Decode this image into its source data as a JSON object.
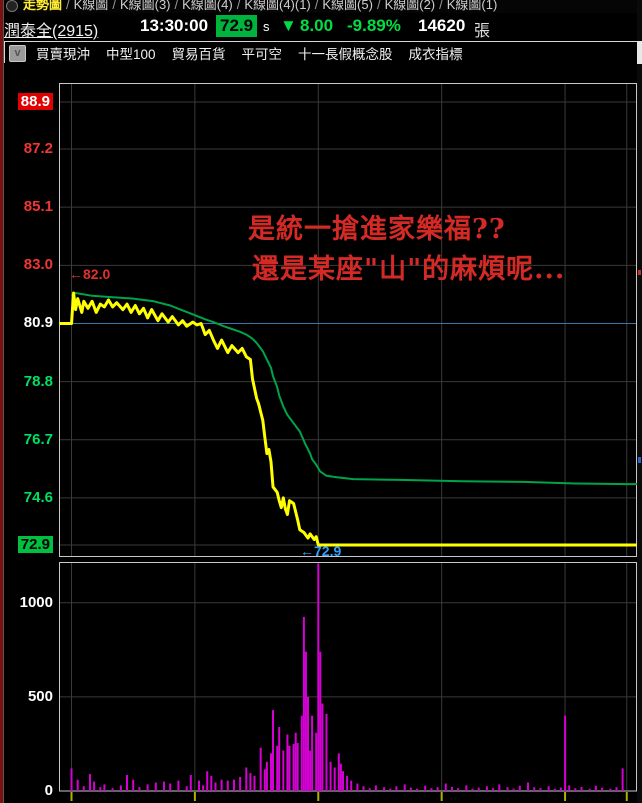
{
  "tabs": {
    "separator": "/",
    "items": [
      {
        "label": "走勢圖",
        "selected": true
      },
      {
        "label": "K線圖",
        "selected": false
      },
      {
        "label": "K線圖(3)",
        "selected": false
      },
      {
        "label": "K線圖(4)",
        "selected": false
      },
      {
        "label": "K線圖(4)(1)",
        "selected": false
      },
      {
        "label": "K線圖(5)",
        "selected": false
      },
      {
        "label": "K線圖(2)",
        "selected": false
      },
      {
        "label": "K線圖(1)",
        "selected": false
      }
    ]
  },
  "quote": {
    "name": "潤泰全(2915)",
    "time": "13:30:00",
    "price": "72.9",
    "price_flag": "s",
    "change_arrow": "▼",
    "change": "8.00",
    "change_pct": "-9.89%",
    "volume": "14620",
    "volume_unit": "張"
  },
  "groups": {
    "button_glyph": "v",
    "items": [
      "買賣現沖",
      "中型100",
      "貿易百貨",
      "平可空",
      "十一長假概念股",
      "成衣指標"
    ]
  },
  "annotation": {
    "line1": "是統一搶進家樂福??",
    "line2": "還是某座\"山\"的麻煩呢..."
  },
  "markers": {
    "open_high": "←82.0",
    "limit_low": "←72.9"
  },
  "colors": {
    "price_line": "#ffff00",
    "avg_line": "#00a448",
    "ref_line": "#3f74a8",
    "grid": "#3a3a3a",
    "panel_border": "#c8c8c8",
    "volume_bar": "#d400d4",
    "tick": "#b0b000",
    "up_text": "#f23535",
    "down_text": "#00e065",
    "limit_up_bg": "#e00000",
    "limit_down_bg": "#00c040",
    "header_down": "#00dd44"
  },
  "chart_data": [
    {
      "type": "line",
      "title": "intraday price 潤泰全(2915)",
      "x_unit": "minutes since 09:00",
      "xlim": [
        -6,
        275
      ],
      "x_gridlines_minutes": [
        0,
        60,
        120,
        180,
        240,
        270
      ],
      "ylim": [
        72.45,
        89.6
      ],
      "yticks": [
        {
          "v": 88.9,
          "style": "limit-up"
        },
        {
          "v": 87.2,
          "style": "up"
        },
        {
          "v": 85.1,
          "style": "up"
        },
        {
          "v": 83.0,
          "style": "up"
        },
        {
          "v": 80.9,
          "style": "ref"
        },
        {
          "v": 78.8,
          "style": "down"
        },
        {
          "v": 76.7,
          "style": "down"
        },
        {
          "v": 74.6,
          "style": "down"
        },
        {
          "v": 72.9,
          "style": "limit-down"
        }
      ],
      "ref_price": 80.9,
      "series": [
        {
          "name": "avg-price",
          "color": "#00a448",
          "width": 2,
          "points": [
            [
              0,
              81.9
            ],
            [
              2,
              82.0
            ],
            [
              10,
              81.9
            ],
            [
              20,
              81.85
            ],
            [
              30,
              81.8
            ],
            [
              40,
              81.7
            ],
            [
              48,
              81.55
            ],
            [
              53,
              81.4
            ],
            [
              60,
              81.2
            ],
            [
              65,
              81.05
            ],
            [
              69,
              80.95
            ],
            [
              74,
              80.8
            ],
            [
              78,
              80.7
            ],
            [
              82,
              80.6
            ],
            [
              85,
              80.5
            ],
            [
              88,
              80.35
            ],
            [
              90,
              80.2
            ],
            [
              93,
              79.9
            ],
            [
              95,
              79.6
            ],
            [
              97,
              79.3
            ],
            [
              98,
              79.0
            ],
            [
              100,
              78.6
            ],
            [
              101,
              78.3
            ],
            [
              103,
              77.9
            ],
            [
              105,
              77.6
            ],
            [
              108,
              77.3
            ],
            [
              111,
              77.0
            ],
            [
              114,
              76.5
            ],
            [
              116,
              76.2
            ],
            [
              117,
              76.0
            ],
            [
              119,
              75.8
            ],
            [
              121,
              75.55
            ],
            [
              124,
              75.4
            ],
            [
              129,
              75.35
            ],
            [
              137,
              75.28
            ],
            [
              160,
              75.25
            ],
            [
              190,
              75.2
            ],
            [
              220,
              75.18
            ],
            [
              245,
              75.12
            ],
            [
              270,
              75.1
            ],
            [
              275,
              75.1
            ]
          ]
        },
        {
          "name": "price",
          "color": "#ffff00",
          "width": 3,
          "points": [
            [
              -6,
              80.9
            ],
            [
              0,
              80.9
            ],
            [
              1,
              82.0
            ],
            [
              2,
              81.4
            ],
            [
              3,
              81.8
            ],
            [
              5,
              81.3
            ],
            [
              6,
              81.7
            ],
            [
              8,
              81.45
            ],
            [
              10,
              81.7
            ],
            [
              12,
              81.3
            ],
            [
              14,
              81.6
            ],
            [
              16,
              81.5
            ],
            [
              18,
              81.75
            ],
            [
              20,
              81.5
            ],
            [
              22,
              81.65
            ],
            [
              25,
              81.4
            ],
            [
              27,
              81.6
            ],
            [
              29,
              81.3
            ],
            [
              31,
              81.55
            ],
            [
              33,
              81.25
            ],
            [
              35,
              81.45
            ],
            [
              37,
              81.1
            ],
            [
              39,
              81.4
            ],
            [
              42,
              81.0
            ],
            [
              44,
              81.25
            ],
            [
              47,
              80.95
            ],
            [
              49,
              81.15
            ],
            [
              52,
              80.85
            ],
            [
              54,
              81.0
            ],
            [
              56,
              80.8
            ],
            [
              59,
              80.95
            ],
            [
              61,
              80.85
            ],
            [
              63,
              80.9
            ],
            [
              65,
              80.5
            ],
            [
              67,
              80.65
            ],
            [
              69,
              80.3
            ],
            [
              71,
              80.0
            ],
            [
              73,
              80.3
            ],
            [
              76,
              79.85
            ],
            [
              78,
              80.1
            ],
            [
              81,
              79.85
            ],
            [
              83,
              80.0
            ],
            [
              85,
              79.7
            ],
            [
              87,
              79.6
            ],
            [
              88,
              78.9
            ],
            [
              90,
              78.2
            ],
            [
              91,
              78.0
            ],
            [
              92,
              77.7
            ],
            [
              93,
              77.4
            ],
            [
              94,
              76.8
            ],
            [
              95,
              76.2
            ],
            [
              96,
              76.35
            ],
            [
              97,
              75.9
            ],
            [
              98,
              75.0
            ],
            [
              99,
              74.9
            ],
            [
              100,
              74.8
            ],
            [
              101,
              74.5
            ],
            [
              102,
              74.25
            ],
            [
              103,
              74.6
            ],
            [
              104,
              74.2
            ],
            [
              105,
              74.0
            ],
            [
              106,
              74.5
            ],
            [
              108,
              74.4
            ],
            [
              110,
              73.8
            ],
            [
              111,
              73.45
            ],
            [
              113,
              73.35
            ],
            [
              115,
              73.15
            ],
            [
              116,
              73.3
            ],
            [
              118,
              73.1
            ],
            [
              119,
              73.2
            ],
            [
              120,
              72.9
            ],
            [
              270,
              72.9
            ],
            [
              275,
              72.9
            ]
          ]
        }
      ],
      "annotations": [
        {
          "text": "←82.0",
          "at_price": 82.0,
          "color": "#e03030"
        },
        {
          "text": "←72.9",
          "at_price": 72.9,
          "color": "#2fa0ff"
        }
      ]
    },
    {
      "type": "bar",
      "title": "volume (張)",
      "x_unit": "minutes since 09:00",
      "xlim": [
        -6,
        275
      ],
      "x_gridlines_minutes": [
        0,
        60,
        120,
        180,
        240,
        270
      ],
      "ylim": [
        0,
        1215
      ],
      "yticks": [
        0,
        500,
        1000
      ],
      "bar_color": "#d400d4",
      "bars": [
        [
          0,
          120
        ],
        [
          3,
          60
        ],
        [
          6,
          25
        ],
        [
          9,
          90
        ],
        [
          11,
          50
        ],
        [
          14,
          20
        ],
        [
          16,
          35
        ],
        [
          20,
          15
        ],
        [
          24,
          30
        ],
        [
          27,
          85
        ],
        [
          30,
          60
        ],
        [
          33,
          20
        ],
        [
          37,
          35
        ],
        [
          41,
          45
        ],
        [
          45,
          50
        ],
        [
          48,
          40
        ],
        [
          52,
          55
        ],
        [
          56,
          25
        ],
        [
          58,
          85
        ],
        [
          62,
          55
        ],
        [
          64,
          30
        ],
        [
          66,
          105
        ],
        [
          68,
          80
        ],
        [
          70,
          45
        ],
        [
          73,
          60
        ],
        [
          76,
          55
        ],
        [
          79,
          60
        ],
        [
          82,
          75
        ],
        [
          85,
          125
        ],
        [
          87,
          95
        ],
        [
          89,
          80
        ],
        [
          92,
          230
        ],
        [
          94,
          115
        ],
        [
          95,
          155
        ],
        [
          97,
          200
        ],
        [
          98,
          430
        ],
        [
          100,
          240
        ],
        [
          101,
          340
        ],
        [
          103,
          215
        ],
        [
          105,
          300
        ],
        [
          106,
          240
        ],
        [
          108,
          250
        ],
        [
          109,
          310
        ],
        [
          110,
          255
        ],
        [
          112,
          400
        ],
        [
          113,
          925
        ],
        [
          114,
          740
        ],
        [
          115,
          500
        ],
        [
          116,
          215
        ],
        [
          117,
          400
        ],
        [
          119,
          310
        ],
        [
          120,
          1215
        ],
        [
          121,
          740
        ],
        [
          122,
          465
        ],
        [
          124,
          410
        ],
        [
          126,
          155
        ],
        [
          128,
          125
        ],
        [
          130,
          200
        ],
        [
          131,
          145
        ],
        [
          132,
          105
        ],
        [
          134,
          80
        ],
        [
          136,
          55
        ],
        [
          139,
          40
        ],
        [
          142,
          25
        ],
        [
          145,
          15
        ],
        [
          148,
          30
        ],
        [
          152,
          20
        ],
        [
          155,
          12
        ],
        [
          158,
          25
        ],
        [
          162,
          35
        ],
        [
          165,
          18
        ],
        [
          168,
          12
        ],
        [
          172,
          28
        ],
        [
          175,
          15
        ],
        [
          178,
          20
        ],
        [
          182,
          40
        ],
        [
          185,
          22
        ],
        [
          188,
          15
        ],
        [
          192,
          30
        ],
        [
          195,
          12
        ],
        [
          198,
          18
        ],
        [
          202,
          25
        ],
        [
          205,
          15
        ],
        [
          208,
          35
        ],
        [
          212,
          20
        ],
        [
          215,
          12
        ],
        [
          218,
          28
        ],
        [
          222,
          45
        ],
        [
          225,
          20
        ],
        [
          228,
          15
        ],
        [
          232,
          25
        ],
        [
          235,
          12
        ],
        [
          238,
          18
        ],
        [
          240,
          400
        ],
        [
          242,
          30
        ],
        [
          245,
          15
        ],
        [
          248,
          22
        ],
        [
          252,
          12
        ],
        [
          255,
          28
        ],
        [
          258,
          18
        ],
        [
          262,
          12
        ],
        [
          265,
          20
        ],
        [
          268,
          120
        ]
      ]
    }
  ]
}
